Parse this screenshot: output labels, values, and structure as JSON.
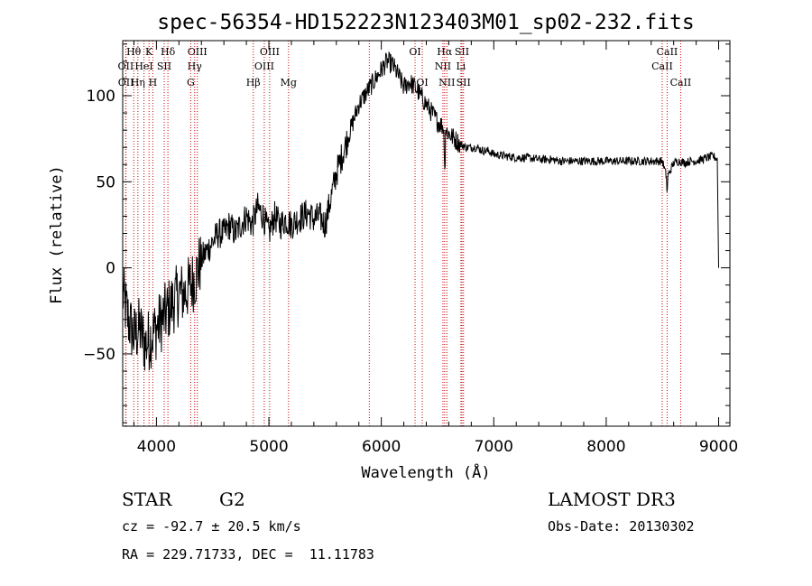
{
  "chart_data": {
    "type": "line",
    "title": "spec-56354-HD152223N123403M01_sp02-232.fits",
    "xlabel": "Wavelength (Å)",
    "ylabel": "Flux (relative)",
    "xlim": [
      3700,
      9100
    ],
    "ylim": [
      -92,
      132
    ],
    "xticks": [
      4000,
      5000,
      6000,
      7000,
      8000,
      9000
    ],
    "yticks": [
      -50,
      0,
      50,
      100
    ],
    "spectrum": {
      "x": [
        3700,
        3750,
        3800,
        3850,
        3900,
        3950,
        4000,
        4050,
        4100,
        4150,
        4200,
        4250,
        4300,
        4350,
        4400,
        4450,
        4500,
        4550,
        4600,
        4650,
        4700,
        4750,
        4800,
        4850,
        4900,
        4950,
        5000,
        5050,
        5100,
        5150,
        5200,
        5250,
        5300,
        5350,
        5400,
        5450,
        5500,
        5550,
        5600,
        5650,
        5700,
        5750,
        5800,
        5850,
        5900,
        5950,
        6000,
        6050,
        6100,
        6150,
        6200,
        6250,
        6300,
        6350,
        6400,
        6450,
        6500,
        6550,
        6600,
        6650,
        6700,
        6750,
        6800,
        6850,
        6900,
        6950,
        7000,
        7100,
        7200,
        7300,
        7400,
        7500,
        7600,
        7700,
        7800,
        7900,
        8000,
        8100,
        8200,
        8300,
        8400,
        8500,
        8540,
        8600,
        8650,
        8700,
        8750,
        8800,
        8850,
        8900,
        8950,
        8990,
        9000
      ],
      "y": [
        -15,
        -30,
        -40,
        -35,
        -45,
        -40,
        -35,
        -30,
        -25,
        -20,
        -15,
        -15,
        -10,
        -5,
        5,
        10,
        15,
        20,
        20,
        25,
        20,
        25,
        30,
        25,
        35,
        30,
        20,
        30,
        25,
        28,
        25,
        28,
        30,
        32,
        28,
        30,
        25,
        40,
        55,
        65,
        75,
        85,
        95,
        100,
        105,
        110,
        115,
        120,
        118,
        112,
        105,
        108,
        105,
        100,
        95,
        90,
        85,
        82,
        78,
        75,
        72,
        70,
        70,
        70,
        68,
        68,
        66,
        65,
        64,
        64,
        63,
        63,
        62,
        62,
        62,
        62,
        62,
        62,
        62,
        62,
        62,
        62,
        52,
        61,
        62,
        61,
        62,
        62,
        63,
        64,
        65,
        63,
        0
      ]
    }
  },
  "spectral_lines": [
    {
      "label": "Hθ",
      "wl": 3798,
      "row": 1
    },
    {
      "label": "K",
      "wl": 3934,
      "row": 1
    },
    {
      "label": "Hδ",
      "wl": 4102,
      "row": 1
    },
    {
      "label": "OIII",
      "wl": 4364,
      "row": 1
    },
    {
      "label": "OIII",
      "wl": 5007,
      "row": 1
    },
    {
      "label": "OI",
      "wl": 6300,
      "row": 1
    },
    {
      "label": "Hα",
      "wl": 6563,
      "row": 1
    },
    {
      "label": "SII",
      "wl": 6717,
      "row": 1
    },
    {
      "label": "CaII",
      "wl": 8542,
      "row": 1
    },
    {
      "label": "OII",
      "wl": 3727,
      "row": 2
    },
    {
      "label": "HeI",
      "wl": 3889,
      "row": 2
    },
    {
      "label": "SII",
      "wl": 4069,
      "row": 2
    },
    {
      "label": "Hγ",
      "wl": 4340,
      "row": 2
    },
    {
      "label": "OIII",
      "wl": 4959,
      "row": 2
    },
    {
      "label": "NII",
      "wl": 6548,
      "row": 2
    },
    {
      "label": "Li",
      "wl": 6708,
      "row": 2
    },
    {
      "label": "CaII",
      "wl": 8498,
      "row": 2
    },
    {
      "label": "OII",
      "wl": 3729,
      "row": 3
    },
    {
      "label": "Hη",
      "wl": 3835,
      "row": 3
    },
    {
      "label": "H",
      "wl": 3968,
      "row": 3
    },
    {
      "label": "G",
      "wl": 4305,
      "row": 3
    },
    {
      "label": "Hβ",
      "wl": 4861,
      "row": 3
    },
    {
      "label": "Mg",
      "wl": 5175,
      "row": 3
    },
    {
      "label": "OI",
      "wl": 6364,
      "row": 3
    },
    {
      "label": "NII",
      "wl": 6583,
      "row": 3
    },
    {
      "label": "SII",
      "wl": 6731,
      "row": 3
    },
    {
      "label": "CaII",
      "wl": 8662,
      "row": 3
    },
    {
      "label": "",
      "wl": 5893,
      "row": 0
    }
  ],
  "info": {
    "object_class": "STAR",
    "subclass": "G2",
    "survey": "LAMOST DR3",
    "redshift": "cz = -92.7 ± 20.5 km/s",
    "obs_date": "Obs-Date: 20130302",
    "coords": "RA = 229.71733, DEC =  11.11783"
  },
  "colors": {
    "spectrum": "#000000",
    "line_markers": "#cc0000",
    "axes": "#000000"
  }
}
